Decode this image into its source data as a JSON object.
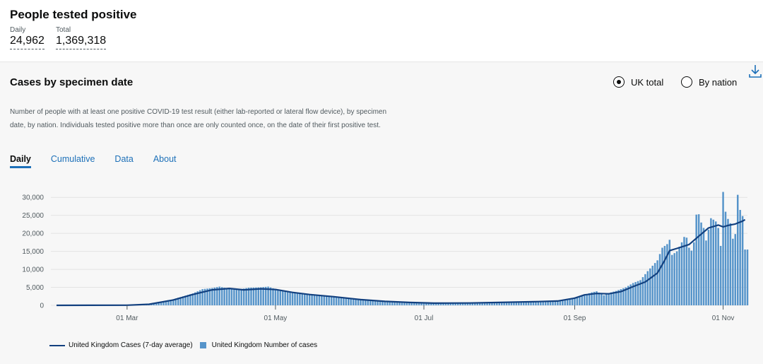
{
  "header": {
    "title": "People tested positive",
    "daily_label": "Daily",
    "daily_value": "24,962",
    "total_label": "Total",
    "total_value": "1,369,318"
  },
  "panel": {
    "title": "Cases by specimen date",
    "radio_uk": "UK total",
    "radio_nation": "By nation",
    "selected": "uk",
    "description": "Number of people with at least one positive COVID-19 test result (either lab-reported or lateral flow device), by specimen date, by nation. Individuals tested positive more than once are only counted once, on the date of their first positive test.",
    "tabs": [
      "Daily",
      "Cumulative",
      "Data",
      "About"
    ],
    "active_tab": 0,
    "download_icon": "download-icon"
  },
  "chart_data": {
    "type": "bar",
    "x_start": "2020-02-01",
    "x_end": "2020-11-11",
    "ylim": [
      0,
      32000
    ],
    "yticks": [
      0,
      5000,
      10000,
      15000,
      20000,
      25000,
      30000
    ],
    "ytick_labels": [
      "0",
      "5,000",
      "10,000",
      "15,000",
      "20,000",
      "25,000",
      "30,000"
    ],
    "xtick_dates": [
      "2020-03-01",
      "2020-05-01",
      "2020-07-01",
      "2020-09-01",
      "2020-11-01"
    ],
    "xtick_labels": [
      "01 Mar",
      "01 May",
      "01 Jul",
      "01 Sep",
      "01 Nov"
    ],
    "grid": true,
    "legend_placement": "bottom",
    "colors": {
      "line": "#12407f",
      "bars": "#5694ca"
    },
    "series": [
      {
        "name": "United Kingdom Cases (7-day average)",
        "kind": "line",
        "points": [
          [
            "2020-02-01",
            0
          ],
          [
            "2020-03-01",
            30
          ],
          [
            "2020-03-10",
            300
          ],
          [
            "2020-03-20",
            1500
          ],
          [
            "2020-03-28",
            3000
          ],
          [
            "2020-04-05",
            4300
          ],
          [
            "2020-04-12",
            4700
          ],
          [
            "2020-04-18",
            4300
          ],
          [
            "2020-04-25",
            4600
          ],
          [
            "2020-05-01",
            4400
          ],
          [
            "2020-05-08",
            3600
          ],
          [
            "2020-05-15",
            3000
          ],
          [
            "2020-05-25",
            2400
          ],
          [
            "2020-06-05",
            1600
          ],
          [
            "2020-06-15",
            1100
          ],
          [
            "2020-06-25",
            800
          ],
          [
            "2020-07-05",
            600
          ],
          [
            "2020-07-20",
            650
          ],
          [
            "2020-08-01",
            800
          ],
          [
            "2020-08-15",
            1000
          ],
          [
            "2020-08-25",
            1200
          ],
          [
            "2020-09-01",
            2000
          ],
          [
            "2020-09-05",
            2900
          ],
          [
            "2020-09-10",
            3300
          ],
          [
            "2020-09-15",
            3200
          ],
          [
            "2020-09-20",
            3800
          ],
          [
            "2020-09-25",
            5200
          ],
          [
            "2020-09-30",
            6500
          ],
          [
            "2020-10-05",
            9000
          ],
          [
            "2020-10-08",
            12500
          ],
          [
            "2020-10-10",
            15200
          ],
          [
            "2020-10-13",
            15800
          ],
          [
            "2020-10-18",
            16900
          ],
          [
            "2020-10-22",
            19200
          ],
          [
            "2020-10-26",
            21500
          ],
          [
            "2020-10-30",
            22300
          ],
          [
            "2020-11-01",
            21800
          ],
          [
            "2020-11-03",
            22200
          ],
          [
            "2020-11-06",
            22600
          ],
          [
            "2020-11-09",
            23400
          ],
          [
            "2020-11-10",
            23800
          ]
        ]
      },
      {
        "name": "United Kingdom Number of cases",
        "kind": "bar",
        "points": [
          [
            "2020-02-01",
            0
          ],
          [
            "2020-03-01",
            40
          ],
          [
            "2020-03-10",
            400
          ],
          [
            "2020-03-20",
            1700
          ],
          [
            "2020-03-28",
            3300
          ],
          [
            "2020-04-01",
            4500
          ],
          [
            "2020-04-05",
            4800
          ],
          [
            "2020-04-08",
            5200
          ],
          [
            "2020-04-12",
            4600
          ],
          [
            "2020-04-15",
            4300
          ],
          [
            "2020-04-20",
            4900
          ],
          [
            "2020-04-25",
            5000
          ],
          [
            "2020-04-28",
            5200
          ],
          [
            "2020-05-01",
            4500
          ],
          [
            "2020-05-05",
            3800
          ],
          [
            "2020-05-10",
            3300
          ],
          [
            "2020-05-15",
            3000
          ],
          [
            "2020-05-20",
            2700
          ],
          [
            "2020-05-25",
            2300
          ],
          [
            "2020-06-01",
            1800
          ],
          [
            "2020-06-10",
            1300
          ],
          [
            "2020-06-20",
            900
          ],
          [
            "2020-07-01",
            600
          ],
          [
            "2020-07-15",
            620
          ],
          [
            "2020-08-01",
            850
          ],
          [
            "2020-08-15",
            1000
          ],
          [
            "2020-08-25",
            1250
          ],
          [
            "2020-09-01",
            2200
          ],
          [
            "2020-09-05",
            2900
          ],
          [
            "2020-09-08",
            3600
          ],
          [
            "2020-09-10",
            3900
          ],
          [
            "2020-09-13",
            2800
          ],
          [
            "2020-09-15",
            3400
          ],
          [
            "2020-09-18",
            4000
          ],
          [
            "2020-09-22",
            5000
          ],
          [
            "2020-09-25",
            6200
          ],
          [
            "2020-09-28",
            7000
          ],
          [
            "2020-10-01",
            9500
          ],
          [
            "2020-10-03",
            11000
          ],
          [
            "2020-10-05",
            12500
          ],
          [
            "2020-10-07",
            16000
          ],
          [
            "2020-10-09",
            17000
          ],
          [
            "2020-10-10",
            18200
          ],
          [
            "2020-10-11",
            14000
          ],
          [
            "2020-10-13",
            15000
          ],
          [
            "2020-10-15",
            17500
          ],
          [
            "2020-10-16",
            19000
          ],
          [
            "2020-10-17",
            18800
          ],
          [
            "2020-10-18",
            16000
          ],
          [
            "2020-10-19",
            15200
          ],
          [
            "2020-10-20",
            17500
          ],
          [
            "2020-10-21",
            25200
          ],
          [
            "2020-10-22",
            25300
          ],
          [
            "2020-10-23",
            23000
          ],
          [
            "2020-10-24",
            21500
          ],
          [
            "2020-10-25",
            18000
          ],
          [
            "2020-10-26",
            21000
          ],
          [
            "2020-10-27",
            24200
          ],
          [
            "2020-10-28",
            23800
          ],
          [
            "2020-10-29",
            23300
          ],
          [
            "2020-10-30",
            21500
          ],
          [
            "2020-10-31",
            16500
          ],
          [
            "2020-11-01",
            31500
          ],
          [
            "2020-11-02",
            26000
          ],
          [
            "2020-11-03",
            24000
          ],
          [
            "2020-11-04",
            22800
          ],
          [
            "2020-11-05",
            18500
          ],
          [
            "2020-11-06",
            19800
          ],
          [
            "2020-11-07",
            30700
          ],
          [
            "2020-11-08",
            26500
          ],
          [
            "2020-11-09",
            24800
          ],
          [
            "2020-11-10",
            15500
          ]
        ]
      }
    ]
  }
}
